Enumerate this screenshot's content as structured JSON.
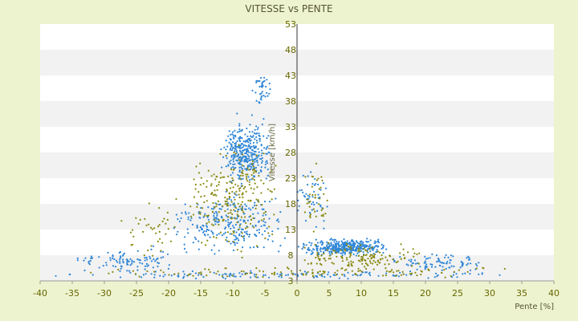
{
  "chart_data": {
    "type": "scatter",
    "title": "VITESSE vs PENTE",
    "xlabel": "Pente [%]",
    "ylabel": "Vitesse [km/h]",
    "xlim": [
      -40,
      40
    ],
    "ylim": [
      3,
      53
    ],
    "x_ticks": [
      -40,
      -35,
      -30,
      -25,
      -20,
      -15,
      -10,
      -5,
      0,
      5,
      10,
      15,
      20,
      25,
      30,
      35,
      40
    ],
    "y_ticks": [
      3,
      8,
      13,
      18,
      23,
      28,
      33,
      38,
      43,
      48,
      53
    ],
    "grid": "horizontal bands",
    "legend": "none",
    "series_colors": [
      "#2f86d6",
      "#8a8a12"
    ],
    "clusters": [
      {
        "color_index": 0,
        "count": 340,
        "x_range": [
          -12,
          -4
        ],
        "y_range": [
          20,
          36
        ]
      },
      {
        "color_index": 0,
        "count": 40,
        "x_range": [
          -7,
          -4
        ],
        "y_range": [
          36,
          44
        ]
      },
      {
        "color_index": 0,
        "count": 260,
        "x_range": [
          -20,
          -1
        ],
        "y_range": [
          6,
          22
        ]
      },
      {
        "color_index": 0,
        "count": 380,
        "x_range": [
          0,
          15
        ],
        "y_range": [
          7.5,
          11.5
        ]
      },
      {
        "color_index": 0,
        "count": 140,
        "x_range": [
          -40,
          40
        ],
        "y_range": [
          3.3,
          5
        ]
      },
      {
        "color_index": 0,
        "count": 100,
        "x_range": [
          -35,
          -18
        ],
        "y_range": [
          4,
          10
        ]
      },
      {
        "color_index": 0,
        "count": 90,
        "x_range": [
          14,
          30
        ],
        "y_range": [
          4,
          9
        ]
      },
      {
        "color_index": 0,
        "count": 50,
        "x_range": [
          0,
          5
        ],
        "y_range": [
          12,
          26
        ]
      },
      {
        "color_index": 1,
        "count": 240,
        "x_range": [
          -17,
          -3
        ],
        "y_range": [
          6,
          32
        ]
      },
      {
        "color_index": 1,
        "count": 150,
        "x_range": [
          0,
          20
        ],
        "y_range": [
          4,
          11
        ]
      },
      {
        "color_index": 1,
        "count": 120,
        "x_range": [
          -36,
          36
        ],
        "y_range": [
          3.2,
          6
        ]
      },
      {
        "color_index": 1,
        "count": 40,
        "x_range": [
          -28,
          -18
        ],
        "y_range": [
          6,
          20
        ]
      },
      {
        "color_index": 1,
        "count": 40,
        "x_range": [
          0,
          5
        ],
        "y_range": [
          12,
          28
        ]
      }
    ]
  }
}
